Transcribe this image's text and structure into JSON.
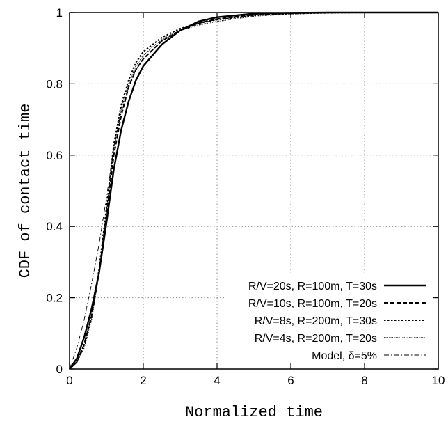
{
  "chart_data": {
    "type": "line",
    "title": "",
    "xlabel": "Normalized time",
    "ylabel": "CDF of contact time",
    "xlim": [
      0,
      10
    ],
    "ylim": [
      0,
      1
    ],
    "x_ticks": [
      0,
      2,
      4,
      6,
      8,
      10
    ],
    "y_ticks": [
      0,
      0.2,
      0.4,
      0.6,
      0.8,
      1
    ],
    "x_tick_labels": [
      "0",
      "2",
      "4",
      "6",
      "8",
      "10"
    ],
    "y_tick_labels": [
      "0",
      "0.2",
      "0.4",
      "0.6",
      "0.8",
      "1"
    ],
    "grid": true,
    "legend_position": "bottom-right",
    "series": [
      {
        "name": "R/V=20s, R=100m, T=30s",
        "style": "solid",
        "color": "#000000",
        "x": [
          0,
          0.2,
          0.4,
          0.6,
          0.8,
          1.0,
          1.2,
          1.4,
          1.6,
          1.8,
          2.0,
          2.5,
          3.0,
          3.5,
          4.0,
          5.0,
          6.0,
          7.0,
          8.0,
          10.0
        ],
        "y": [
          0,
          0.03,
          0.09,
          0.17,
          0.27,
          0.41,
          0.56,
          0.67,
          0.75,
          0.81,
          0.85,
          0.91,
          0.95,
          0.975,
          0.987,
          0.997,
          0.999,
          1.0,
          1.0,
          1.0
        ]
      },
      {
        "name": "R/V=10s, R=100m, T=20s",
        "style": "dashed",
        "color": "#000000",
        "x": [
          0,
          0.2,
          0.4,
          0.6,
          0.8,
          1.0,
          1.2,
          1.4,
          1.6,
          1.8,
          2.0,
          2.5,
          3.0,
          3.5,
          4.0,
          5.0,
          6.0,
          7.0,
          8.0,
          10.0
        ],
        "y": [
          0,
          0.02,
          0.07,
          0.15,
          0.27,
          0.43,
          0.6,
          0.71,
          0.79,
          0.84,
          0.87,
          0.92,
          0.95,
          0.97,
          0.982,
          0.994,
          0.998,
          1.0,
          1.0,
          1.0
        ]
      },
      {
        "name": "R/V=8s, R=200m, T=30s",
        "style": "dotted",
        "color": "#000000",
        "x": [
          0,
          0.2,
          0.4,
          0.6,
          0.8,
          1.0,
          1.2,
          1.4,
          1.6,
          1.8,
          2.0,
          2.5,
          3.0,
          3.5,
          4.0,
          5.0,
          6.0,
          7.0,
          8.0,
          10.0
        ],
        "y": [
          0,
          0.02,
          0.07,
          0.15,
          0.28,
          0.45,
          0.63,
          0.74,
          0.81,
          0.86,
          0.89,
          0.93,
          0.955,
          0.97,
          0.98,
          0.992,
          0.997,
          0.999,
          1.0,
          1.0
        ]
      },
      {
        "name": "R/V=4s, R=200m, T=20s",
        "style": "fine-dotted",
        "color": "#000000",
        "x": [
          0,
          0.2,
          0.4,
          0.6,
          0.8,
          1.0,
          1.2,
          1.4,
          1.6,
          1.8,
          2.0,
          2.5,
          3.0,
          3.5,
          4.0,
          5.0,
          6.0,
          7.0,
          8.0,
          10.0
        ],
        "y": [
          0,
          0.02,
          0.06,
          0.14,
          0.27,
          0.44,
          0.62,
          0.73,
          0.8,
          0.85,
          0.88,
          0.925,
          0.95,
          0.965,
          0.975,
          0.99,
          0.996,
          0.999,
          1.0,
          1.0
        ]
      },
      {
        "name": "Model, δ=5%",
        "style": "dash-dot",
        "color": "#000000",
        "x": [
          0,
          0.2,
          0.4,
          0.6,
          0.8,
          1.0,
          1.2,
          1.4,
          1.6,
          1.8,
          2.0,
          2.5,
          3.0,
          3.5,
          4.0,
          5.0,
          6.0,
          7.0,
          8.0,
          10.0
        ],
        "y": [
          0,
          0.06,
          0.14,
          0.24,
          0.35,
          0.48,
          0.62,
          0.72,
          0.79,
          0.84,
          0.87,
          0.92,
          0.95,
          0.97,
          0.98,
          0.993,
          0.998,
          1.0,
          1.0,
          1.0
        ]
      }
    ]
  }
}
